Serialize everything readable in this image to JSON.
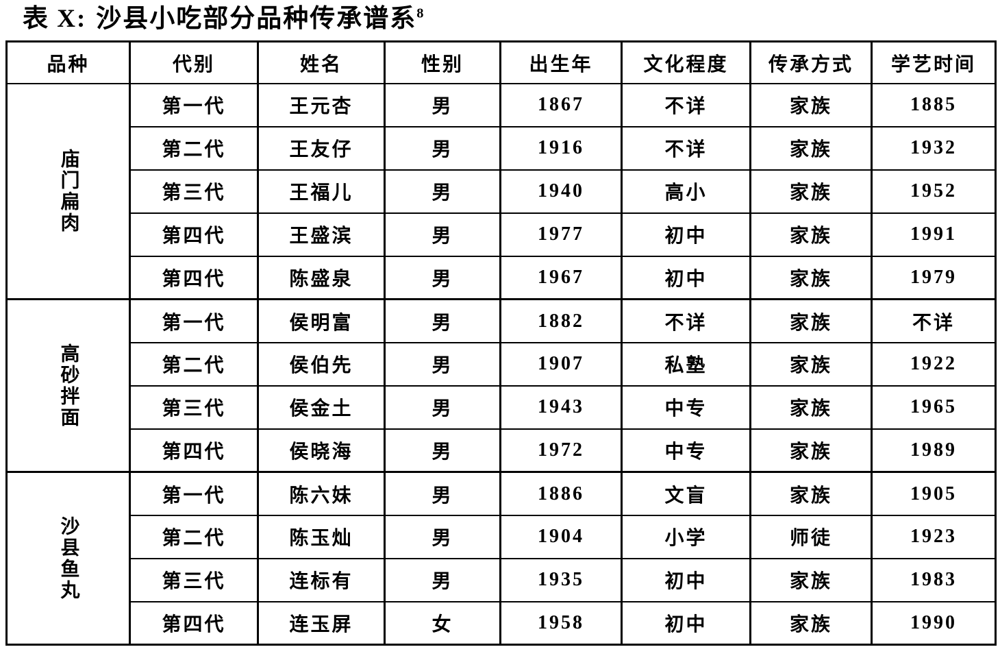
{
  "title": {
    "prefix": "表 X:",
    "text": "沙县小吃部分品种传承谱系",
    "footnote_ref": "8"
  },
  "table": {
    "headers": [
      "品种",
      "代别",
      "姓名",
      "性别",
      "出生年",
      "文化程度",
      "传承方式",
      "学艺时间"
    ],
    "column_keys": [
      "generation",
      "name",
      "gender",
      "birth_year",
      "education",
      "method",
      "learn_year"
    ],
    "groups": [
      {
        "variety": "庙门扁肉",
        "rows": [
          {
            "generation": "第一代",
            "name": "王元杏",
            "gender": "男",
            "birth_year": "1867",
            "education": "不详",
            "method": "家族",
            "learn_year": "1885"
          },
          {
            "generation": "第二代",
            "name": "王友仔",
            "gender": "男",
            "birth_year": "1916",
            "education": "不详",
            "method": "家族",
            "learn_year": "1932"
          },
          {
            "generation": "第三代",
            "name": "王福儿",
            "gender": "男",
            "birth_year": "1940",
            "education": "高小",
            "method": "家族",
            "learn_year": "1952"
          },
          {
            "generation": "第四代",
            "name": "王盛滨",
            "gender": "男",
            "birth_year": "1977",
            "education": "初中",
            "method": "家族",
            "learn_year": "1991"
          },
          {
            "generation": "第四代",
            "name": "陈盛泉",
            "gender": "男",
            "birth_year": "1967",
            "education": "初中",
            "method": "家族",
            "learn_year": "1979"
          }
        ]
      },
      {
        "variety": "高砂拌面",
        "rows": [
          {
            "generation": "第一代",
            "name": "侯明富",
            "gender": "男",
            "birth_year": "1882",
            "education": "不详",
            "method": "家族",
            "learn_year": "不详"
          },
          {
            "generation": "第二代",
            "name": "侯伯先",
            "gender": "男",
            "birth_year": "1907",
            "education": "私塾",
            "method": "家族",
            "learn_year": "1922"
          },
          {
            "generation": "第三代",
            "name": "侯金土",
            "gender": "男",
            "birth_year": "1943",
            "education": "中专",
            "method": "家族",
            "learn_year": "1965"
          },
          {
            "generation": "第四代",
            "name": "侯晓海",
            "gender": "男",
            "birth_year": "1972",
            "education": "中专",
            "method": "家族",
            "learn_year": "1989"
          }
        ]
      },
      {
        "variety": "沙县鱼丸",
        "rows": [
          {
            "generation": "第一代",
            "name": "陈六妹",
            "gender": "男",
            "birth_year": "1886",
            "education": "文盲",
            "method": "家族",
            "learn_year": "1905"
          },
          {
            "generation": "第二代",
            "name": "陈玉灿",
            "gender": "男",
            "birth_year": "1904",
            "education": "小学",
            "method": "师徒",
            "learn_year": "1923"
          },
          {
            "generation": "第三代",
            "name": "连标有",
            "gender": "男",
            "birth_year": "1935",
            "education": "初中",
            "method": "家族",
            "learn_year": "1983"
          },
          {
            "generation": "第四代",
            "name": "连玉屏",
            "gender": "女",
            "birth_year": "1958",
            "education": "初中",
            "method": "家族",
            "learn_year": "1990"
          }
        ]
      }
    ]
  }
}
